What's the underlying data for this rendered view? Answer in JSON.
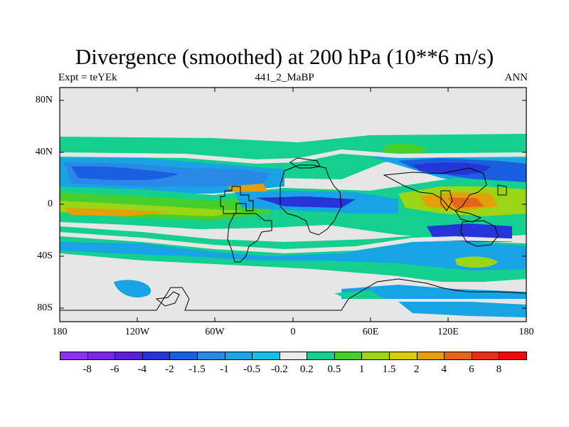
{
  "title": "Divergence (smoothed) at 200 hPa (10**6 m/s)",
  "subtitle_left": "Expt = teYEk",
  "subtitle_center": "441_2_MaBP",
  "subtitle_right": "ANN",
  "map": {
    "lat_ticks": [
      "80N",
      "40N",
      "0",
      "40S",
      "80S"
    ],
    "lon_ticks": [
      "180",
      "120W",
      "60W",
      "0",
      "60E",
      "120E",
      "180"
    ],
    "background_color": "#e6e6e6"
  },
  "colorbar": {
    "labels": [
      "-8",
      "-6",
      "-4",
      "-2",
      "-1.5",
      "-1",
      "-0.5",
      "-0.2",
      "0.2",
      "0.5",
      "1",
      "1.5",
      "2",
      "4",
      "6",
      "8"
    ],
    "colors": [
      "#8f30ee",
      "#7a26e4",
      "#5b1fd8",
      "#2434d6",
      "#1a5fe0",
      "#2a88e6",
      "#18a4e4",
      "#14c0e6",
      "#ececec",
      "#14cf8e",
      "#44cf2c",
      "#9bd616",
      "#d9cd0a",
      "#e3a008",
      "#e5661a",
      "#e62e14",
      "#f00a0a"
    ]
  }
}
